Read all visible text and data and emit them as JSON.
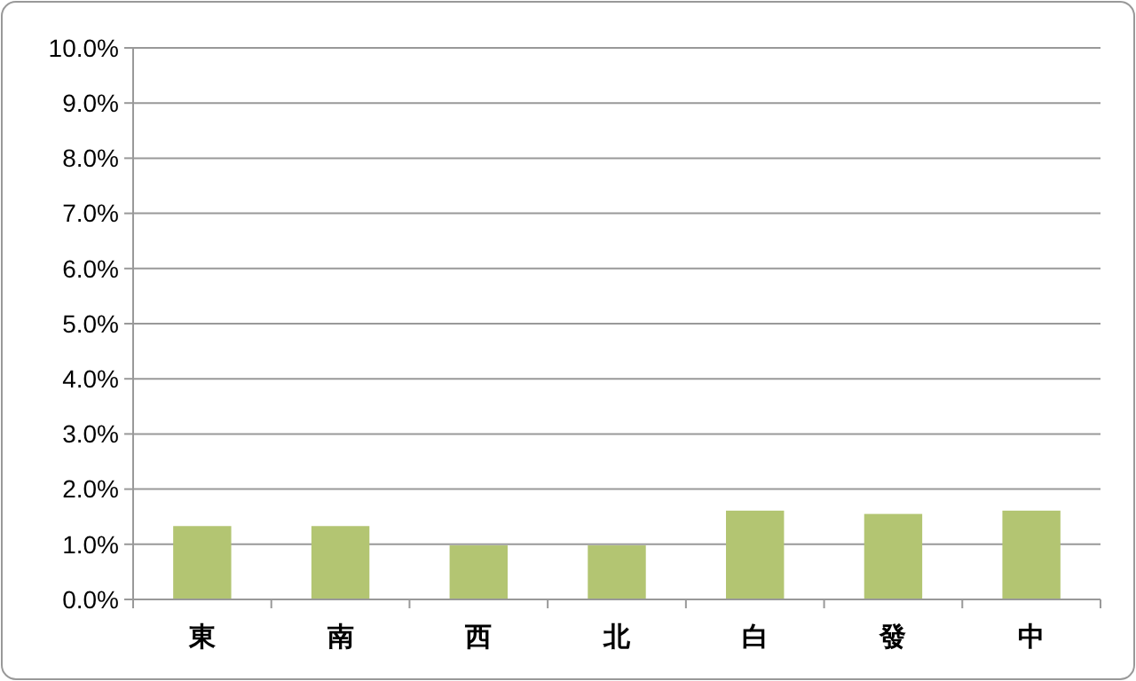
{
  "chart_data": {
    "type": "bar",
    "categories": [
      "東",
      "南",
      "西",
      "北",
      "白",
      "發",
      "中"
    ],
    "values": [
      1.33,
      1.33,
      0.98,
      0.98,
      1.61,
      1.55,
      1.61
    ],
    "color": "#b3c572",
    "ylim": [
      0,
      10
    ],
    "yticks": [
      {
        "value": 0,
        "label": "0.0%"
      },
      {
        "value": 1,
        "label": "1.0%"
      },
      {
        "value": 2,
        "label": "2.0%"
      },
      {
        "value": 3,
        "label": "3.0%"
      },
      {
        "value": 4,
        "label": "4.0%"
      },
      {
        "value": 5,
        "label": "5.0%"
      },
      {
        "value": 6,
        "label": "6.0%"
      },
      {
        "value": 7,
        "label": "7.0%"
      },
      {
        "value": 8,
        "label": "8.0%"
      },
      {
        "value": 9,
        "label": "9.0%"
      },
      {
        "value": 10,
        "label": "10.0%"
      }
    ],
    "grid": "y"
  }
}
